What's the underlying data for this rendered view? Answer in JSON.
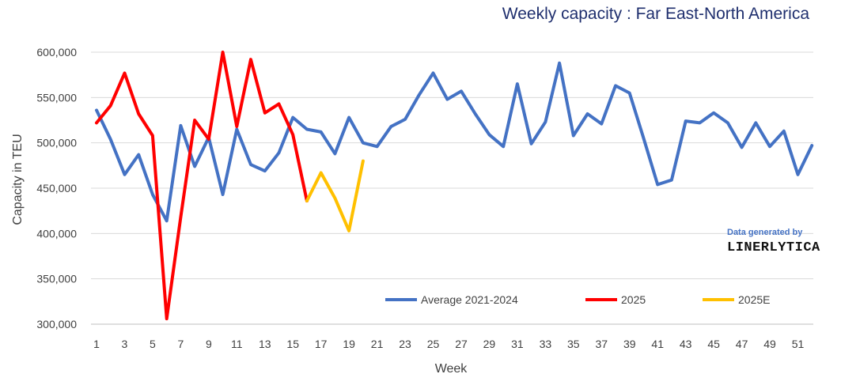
{
  "colors": {
    "title": "#1f2f6e",
    "gridline": "#d9d9d9",
    "axis_text": "#404040",
    "credit_accent": "#4472c4"
  },
  "credit": {
    "line1": "Data generated by",
    "brand": "LINERLYTICA"
  },
  "chart_data": {
    "type": "line",
    "title": "Weekly capacity : Far East-North America",
    "xlabel": "Week",
    "ylabel": "Capacity in TEU",
    "ylim": [
      300000,
      600000
    ],
    "ytick_values": [
      300000,
      350000,
      400000,
      450000,
      500000,
      550000,
      600000
    ],
    "ytick_labels": [
      "300,000",
      "350,000",
      "400,000",
      "450,000",
      "500,000",
      "550,000",
      "600,000"
    ],
    "xlim": [
      1,
      52
    ],
    "xtick_labels": [
      "1",
      "3",
      "5",
      "7",
      "9",
      "11",
      "13",
      "15",
      "17",
      "19",
      "21",
      "23",
      "25",
      "27",
      "29",
      "31",
      "33",
      "35",
      "37",
      "39",
      "41",
      "43",
      "45",
      "47",
      "49",
      "51"
    ],
    "grid": "horizontal",
    "legend_position": "bottom-center",
    "series": [
      {
        "name": "Average 2021-2024",
        "color": "#4472c4",
        "x": [
          1,
          2,
          3,
          4,
          5,
          6,
          7,
          8,
          9,
          10,
          11,
          12,
          13,
          14,
          15,
          16,
          17,
          18,
          19,
          20,
          21,
          22,
          23,
          24,
          25,
          26,
          27,
          28,
          29,
          30,
          31,
          32,
          33,
          34,
          35,
          36,
          37,
          38,
          39,
          40,
          41,
          42,
          43,
          44,
          45,
          46,
          47,
          48,
          49,
          50,
          51,
          52
        ],
        "values": [
          536000,
          504000,
          465000,
          487000,
          443000,
          414000,
          519000,
          474000,
          506000,
          443000,
          515000,
          476000,
          469000,
          489000,
          528000,
          515000,
          512000,
          488000,
          528000,
          500000,
          496000,
          518000,
          526000,
          553000,
          577000,
          548000,
          557000,
          532000,
          509000,
          496000,
          565000,
          499000,
          523000,
          588000,
          508000,
          532000,
          521000,
          563000,
          555000,
          505000,
          454000,
          459000,
          524000,
          522000,
          533000,
          522000,
          495000,
          522000,
          496000,
          513000,
          465000,
          497000
        ]
      },
      {
        "name": "2025",
        "color": "#ff0000",
        "x": [
          1,
          2,
          3,
          4,
          5,
          6,
          7,
          8,
          9,
          10,
          11,
          12,
          13,
          14,
          15,
          16
        ],
        "values": [
          522000,
          541000,
          577000,
          532000,
          508000,
          306000,
          418000,
          525000,
          504000,
          600000,
          518000,
          592000,
          533000,
          543000,
          509000,
          436000
        ]
      },
      {
        "name": "2025E",
        "color": "#ffc000",
        "x": [
          16,
          17,
          18,
          19,
          20
        ],
        "values": [
          436000,
          467000,
          439000,
          403000,
          480000
        ]
      }
    ]
  }
}
